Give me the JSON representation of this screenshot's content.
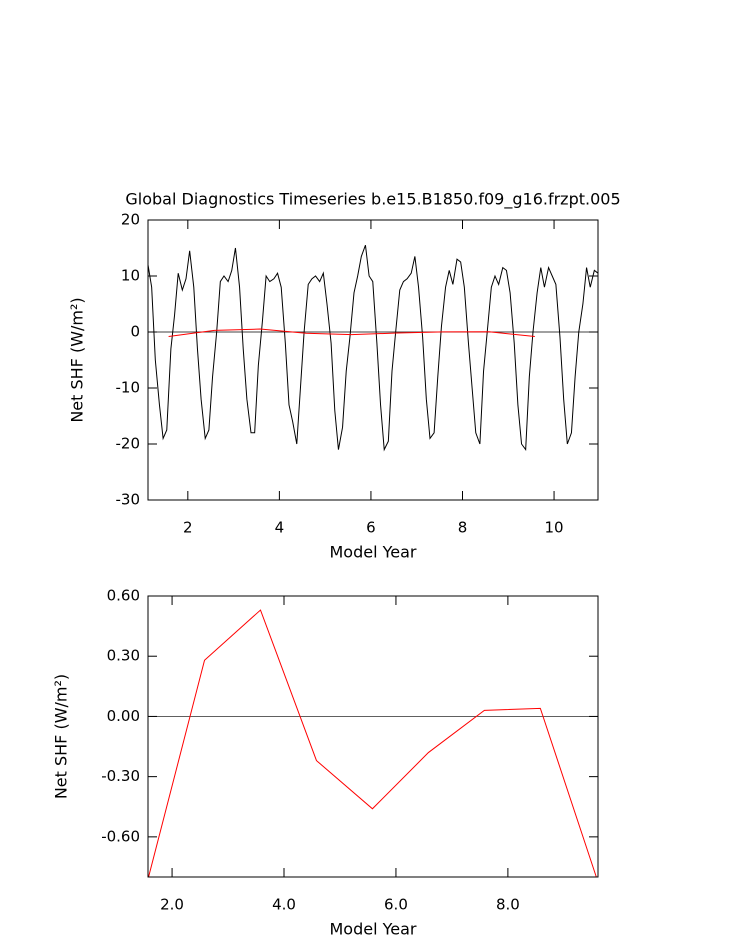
{
  "chart_data": [
    {
      "type": "line",
      "title": "Global Diagnostics Timeseries b.e15.B1850.f09_g16.frzpt.005",
      "xlabel": "Model Year",
      "ylabel": "Net SHF (W/m²)",
      "xlim": [
        1.13,
        10.96
      ],
      "ylim": [
        -30,
        20
      ],
      "xticks": [
        2,
        4,
        6,
        8,
        10
      ],
      "yticks": [
        -30,
        -20,
        -10,
        0,
        10,
        20
      ],
      "hline": 0,
      "series": [
        {
          "color": "#000000",
          "x": [
            1.13,
            1.21,
            1.29,
            1.38,
            1.46,
            1.54,
            1.63,
            1.71,
            1.79,
            1.88,
            1.96,
            2.04,
            2.13,
            2.21,
            2.29,
            2.38,
            2.46,
            2.54,
            2.63,
            2.71,
            2.79,
            2.88,
            2.96,
            3.04,
            3.13,
            3.21,
            3.29,
            3.38,
            3.46,
            3.54,
            3.63,
            3.71,
            3.79,
            3.88,
            3.96,
            4.04,
            4.13,
            4.21,
            4.29,
            4.38,
            4.46,
            4.54,
            4.63,
            4.71,
            4.79,
            4.88,
            4.96,
            5.04,
            5.13,
            5.21,
            5.29,
            5.38,
            5.46,
            5.54,
            5.63,
            5.71,
            5.79,
            5.88,
            5.96,
            6.04,
            6.13,
            6.21,
            6.29,
            6.38,
            6.46,
            6.54,
            6.63,
            6.71,
            6.79,
            6.88,
            6.96,
            7.04,
            7.13,
            7.21,
            7.29,
            7.38,
            7.46,
            7.54,
            7.63,
            7.71,
            7.79,
            7.88,
            7.96,
            8.04,
            8.13,
            8.21,
            8.29,
            8.38,
            8.46,
            8.54,
            8.63,
            8.71,
            8.79,
            8.88,
            8.96,
            9.04,
            9.13,
            9.21,
            9.29,
            9.38,
            9.46,
            9.54,
            9.63,
            9.71,
            9.79,
            9.88,
            9.96,
            10.04,
            10.13,
            10.21,
            10.29,
            10.38,
            10.46,
            10.54,
            10.63,
            10.71,
            10.79,
            10.88,
            10.96
          ],
          "values": [
            12,
            8,
            -5,
            -13,
            -19,
            -17.5,
            -3,
            3,
            10.5,
            7.5,
            9.5,
            14.5,
            8,
            -3,
            -12,
            -19,
            -17.5,
            -8,
            0,
            9,
            10,
            9,
            11,
            15,
            8,
            -3,
            -12,
            -18,
            -18,
            -6,
            2,
            10,
            9,
            9.5,
            10.5,
            8,
            -2,
            -13,
            -16,
            -20,
            -10,
            0,
            8.5,
            9.5,
            10,
            9,
            10.5,
            5,
            -2,
            -14,
            -21,
            -17,
            -7,
            -1,
            7,
            10,
            13.5,
            15.5,
            10,
            9,
            -2,
            -13,
            -21,
            -19.5,
            -7,
            0,
            7.5,
            9,
            9.5,
            10.5,
            13.5,
            8,
            -1,
            -12,
            -19,
            -18,
            -8,
            1,
            8,
            11,
            8.5,
            13,
            12.5,
            8,
            -2,
            -10,
            -18,
            -20,
            -7,
            0,
            8,
            10,
            8.5,
            11.5,
            11,
            7,
            -2,
            -13,
            -20,
            -21,
            -8,
            0,
            7,
            11.5,
            8,
            11.5,
            10,
            8.5,
            -1,
            -12,
            -20,
            -18,
            -8,
            0,
            5,
            11.5,
            8,
            11,
            10.5
          ]
        },
        {
          "color": "#ff0000",
          "x": [
            1.58,
            2.58,
            3.58,
            4.58,
            5.58,
            6.58,
            7.58,
            8.58,
            9.58
          ],
          "values": [
            -0.8,
            0.28,
            0.53,
            -0.22,
            -0.46,
            -0.18,
            0.03,
            0.04,
            -0.8
          ]
        }
      ]
    },
    {
      "type": "line",
      "xlabel": "Model Year",
      "ylabel": "Net SHF (W/m²)",
      "xlim": [
        1.57,
        9.61
      ],
      "ylim": [
        -0.8,
        0.6
      ],
      "xticks": [
        {
          "value": 2,
          "label": "2.0"
        },
        {
          "value": 4,
          "label": "4.0"
        },
        {
          "value": 6,
          "label": "6.0"
        },
        {
          "value": 8,
          "label": "8.0"
        }
      ],
      "yticks": [
        {
          "value": -0.6,
          "label": "-0.60"
        },
        {
          "value": -0.3,
          "label": "-0.30"
        },
        {
          "value": 0,
          "label": "0.00"
        },
        {
          "value": 0.3,
          "label": "0.30"
        },
        {
          "value": 0.6,
          "label": "0.60"
        }
      ],
      "hline": 0,
      "series": [
        {
          "color": "#ff0000",
          "x": [
            1.58,
            2.58,
            3.58,
            4.58,
            5.58,
            6.58,
            7.58,
            8.58,
            9.58
          ],
          "values": [
            -0.8,
            0.28,
            0.53,
            -0.22,
            -0.46,
            -0.18,
            0.03,
            0.04,
            -0.8
          ]
        }
      ]
    }
  ]
}
